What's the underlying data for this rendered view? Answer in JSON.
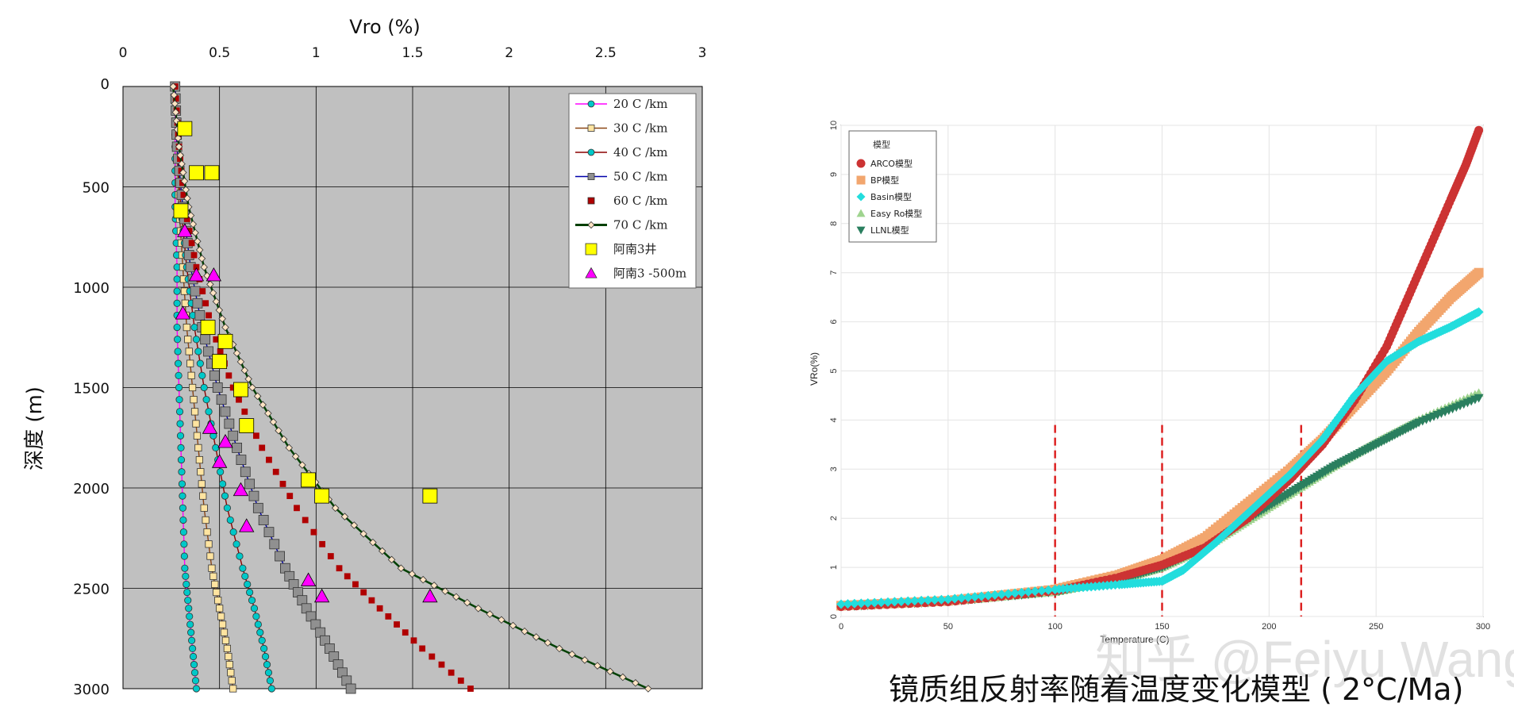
{
  "chart_data": [
    {
      "type": "line",
      "title": "Vro (%)",
      "ylabel": "深度 (m)",
      "xlim": [
        0,
        3
      ],
      "ylim": [
        0,
        3000
      ],
      "x_axis_position": "top",
      "y_inverted": true,
      "x_ticks": [
        "0",
        "0.5",
        "1",
        "1.5",
        "2",
        "2.5",
        "3"
      ],
      "y_ticks": [
        "0",
        "500",
        "1000",
        "1500",
        "2000",
        "2500",
        "3000"
      ],
      "grid": true,
      "background": "#c0c0c0",
      "legend_position": "top-right",
      "series": [
        {
          "name": "20 C /km",
          "kind": "line",
          "color": "#ff00ff",
          "marker": "circle",
          "marker_color": "#00c8c8",
          "x": [
            0.27,
            0.27,
            0.27,
            0.28,
            0.28,
            0.29,
            0.3,
            0.31,
            0.32,
            0.34,
            0.36,
            0.38
          ],
          "y": [
            0,
            300,
            600,
            900,
            1200,
            1500,
            1800,
            2100,
            2400,
            2600,
            2800,
            3000
          ]
        },
        {
          "name": "30 C /km",
          "kind": "line",
          "color": "#8b4513",
          "marker": "square",
          "marker_color": "#ffe4a0",
          "x": [
            0.27,
            0.28,
            0.29,
            0.31,
            0.33,
            0.36,
            0.39,
            0.42,
            0.46,
            0.5,
            0.54,
            0.57
          ],
          "y": [
            0,
            300,
            600,
            900,
            1200,
            1500,
            1800,
            2100,
            2400,
            2600,
            2800,
            3000
          ]
        },
        {
          "name": "40 C /km",
          "kind": "line",
          "color": "#8b0000",
          "marker": "circle",
          "marker_color": "#00c8c8",
          "x": [
            0.27,
            0.28,
            0.3,
            0.33,
            0.37,
            0.42,
            0.48,
            0.54,
            0.62,
            0.68,
            0.73,
            0.77
          ],
          "y": [
            0,
            300,
            600,
            900,
            1200,
            1500,
            1800,
            2100,
            2400,
            2600,
            2800,
            3000
          ]
        },
        {
          "name": "50 C /km",
          "kind": "line",
          "color": "#0000aa",
          "marker": "square",
          "marker_color": "#909090",
          "x": [
            0.27,
            0.28,
            0.31,
            0.35,
            0.41,
            0.49,
            0.59,
            0.7,
            0.84,
            0.95,
            1.07,
            1.18
          ],
          "y": [
            0,
            300,
            600,
            900,
            1200,
            1500,
            1800,
            2100,
            2400,
            2600,
            2800,
            3000
          ]
        },
        {
          "name": "60 C /km",
          "kind": "dots",
          "color": "#b00000",
          "marker": "square",
          "marker_color": "#b00000",
          "x": [
            0.27,
            0.29,
            0.32,
            0.38,
            0.46,
            0.57,
            0.72,
            0.9,
            1.12,
            1.33,
            1.55,
            1.8
          ],
          "y": [
            0,
            300,
            600,
            900,
            1200,
            1500,
            1800,
            2100,
            2400,
            2600,
            2800,
            3000
          ]
        },
        {
          "name": "70 C /km",
          "kind": "line",
          "color": "#004000",
          "marker": "diamond",
          "marker_color": "#ffe4c4",
          "x": [
            0.26,
            0.29,
            0.34,
            0.42,
            0.53,
            0.67,
            0.86,
            1.1,
            1.44,
            1.84,
            2.26,
            2.72
          ],
          "y": [
            0,
            300,
            600,
            900,
            1200,
            1500,
            1800,
            2100,
            2400,
            2600,
            2800,
            3000
          ]
        },
        {
          "name": "阿南3井",
          "kind": "scatter",
          "marker": "square",
          "marker_color": "#ffff00",
          "x": [
            0.32,
            0.38,
            0.46,
            0.3,
            0.44,
            0.53,
            0.5,
            0.61,
            0.64,
            0.96,
            1.03,
            1.59
          ],
          "y": [
            210,
            430,
            430,
            620,
            1200,
            1270,
            1370,
            1510,
            1690,
            1960,
            2040,
            2040
          ]
        },
        {
          "name": "阿南3 -500m",
          "kind": "scatter",
          "marker": "triangle",
          "marker_color": "#ff00ff",
          "x": [
            0.32,
            0.38,
            0.47,
            0.31,
            0.45,
            0.53,
            0.5,
            0.61,
            0.64,
            0.96,
            1.03,
            1.59
          ],
          "y": [
            720,
            940,
            940,
            1130,
            1700,
            1770,
            1870,
            2010,
            2190,
            2460,
            2540,
            2540
          ]
        }
      ]
    },
    {
      "type": "scatter",
      "title": "",
      "xlabel": "Temperature (C)",
      "ylabel": "VRo(%)",
      "xlim": [
        0,
        300
      ],
      "ylim": [
        0,
        10
      ],
      "x_ticks": [
        "0",
        "50",
        "100",
        "150",
        "200",
        "250",
        "300"
      ],
      "y_ticks": [
        "0",
        "1",
        "2",
        "3",
        "4",
        "5",
        "6",
        "7",
        "8",
        "9",
        "10"
      ],
      "grid": true,
      "legend_title": "模型",
      "legend_position": "top-left",
      "vertical_lines_x": [
        100,
        150,
        215
      ],
      "series": [
        {
          "name": "ARCO模型",
          "marker": "circle",
          "color": "#cc3333",
          "x": [
            0,
            50,
            100,
            130,
            150,
            170,
            190,
            210,
            225,
            240,
            255,
            265,
            275,
            285,
            292,
            298
          ],
          "y": [
            0.2,
            0.3,
            0.52,
            0.8,
            1.05,
            1.4,
            2.0,
            2.8,
            3.5,
            4.4,
            5.5,
            6.5,
            7.5,
            8.5,
            9.2,
            9.9
          ]
        },
        {
          "name": "BP模型",
          "marker": "square",
          "color": "#f2a66e",
          "x": [
            0,
            50,
            100,
            130,
            150,
            170,
            190,
            210,
            225,
            240,
            255,
            270,
            285,
            298
          ],
          "y": [
            0.22,
            0.32,
            0.55,
            0.85,
            1.15,
            1.6,
            2.3,
            3.0,
            3.6,
            4.3,
            5.0,
            5.8,
            6.5,
            7.0
          ]
        },
        {
          "name": "Basin模型",
          "marker": "diamond",
          "color": "#22dddd",
          "x": [
            0,
            50,
            100,
            130,
            150,
            160,
            175,
            190,
            210,
            225,
            240,
            255,
            270,
            285,
            298
          ],
          "y": [
            0.25,
            0.35,
            0.55,
            0.65,
            0.72,
            0.95,
            1.5,
            2.1,
            2.9,
            3.6,
            4.5,
            5.2,
            5.6,
            5.9,
            6.2
          ]
        },
        {
          "name": "Easy Ro模型",
          "marker": "triangle",
          "color": "#9fd48f",
          "x": [
            0,
            50,
            100,
            130,
            150,
            170,
            190,
            210,
            230,
            250,
            270,
            298
          ],
          "y": [
            0.2,
            0.3,
            0.5,
            0.75,
            1.0,
            1.4,
            1.95,
            2.5,
            3.05,
            3.55,
            4.0,
            4.55
          ]
        },
        {
          "name": "LLNL模型",
          "marker": "triangle-down",
          "color": "#2a7f5f",
          "x": [
            0,
            50,
            100,
            130,
            150,
            170,
            190,
            210,
            230,
            250,
            270,
            298
          ],
          "y": [
            0.2,
            0.3,
            0.5,
            0.75,
            1.0,
            1.42,
            1.98,
            2.52,
            3.05,
            3.5,
            3.95,
            4.45
          ]
        }
      ]
    }
  ],
  "caption": "镜质组反射率随着温度变化模型 ( 2°C/Ma)",
  "watermark": "知乎 @Feiyu Wang"
}
